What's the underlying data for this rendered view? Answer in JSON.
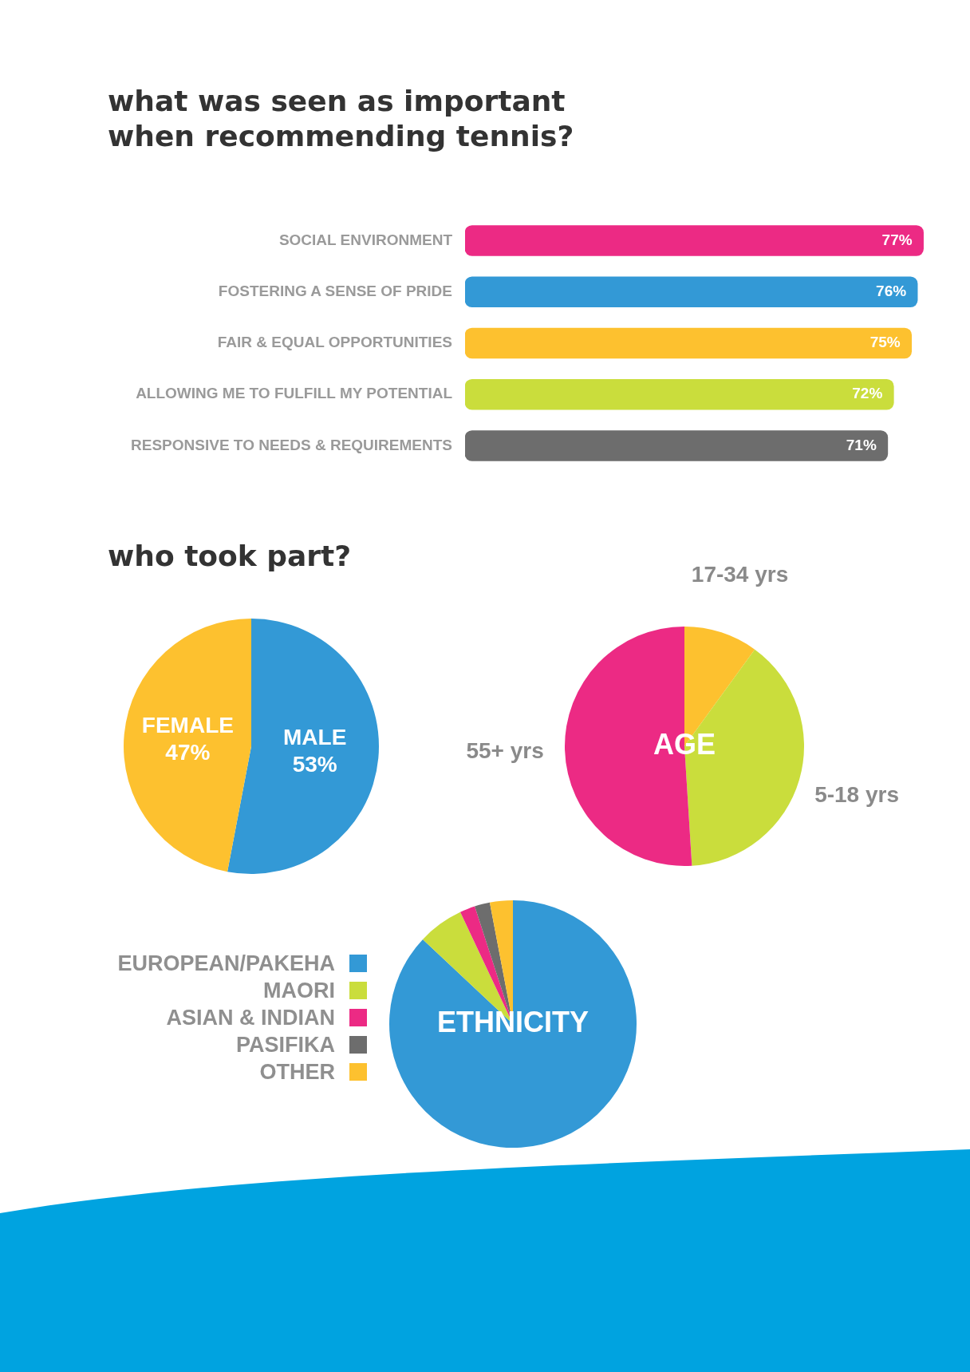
{
  "chart_data": [
    {
      "type": "bar",
      "orientation": "horizontal",
      "title": "what was seen as important\nwhen recommending tennis?",
      "categories": [
        "SOCIAL ENVIRONMENT",
        "FOSTERING A SENSE OF PRIDE",
        "FAIR & EQUAL OPPORTUNITIES",
        "ALLOWING ME TO FULFILL MY POTENTIAL",
        "RESPONSIVE TO NEEDS & REQUIREMENTS"
      ],
      "values": [
        77,
        76,
        75,
        72,
        71
      ],
      "value_labels": [
        "77%",
        "76%",
        "75%",
        "72%",
        "71%"
      ],
      "colors": [
        "#ec2a84",
        "#3399d6",
        "#fdc12f",
        "#cadd3c",
        "#6d6d6d"
      ],
      "tick_labels": "y"
    },
    {
      "type": "pie",
      "title": "who took part?",
      "categories": [
        "MALE",
        "FEMALE"
      ],
      "values": [
        53,
        47
      ],
      "value_labels": [
        "53%",
        "47%"
      ],
      "colors": [
        "#3399d6",
        "#fdc12f"
      ]
    },
    {
      "type": "pie",
      "annotations": [
        "AGE"
      ],
      "categories": [
        "17-34 yrs",
        "5-18 yrs",
        "55+ yrs"
      ],
      "values": [
        10,
        39,
        51
      ],
      "colors": [
        "#fdc12f",
        "#cadd3c",
        "#ec2a84"
      ]
    },
    {
      "type": "pie",
      "annotations": [
        "ETHNICITY"
      ],
      "categories": [
        "EUROPEAN/PAKEHA",
        "MAORI",
        "ASIAN & INDIAN",
        "PASIFIKA",
        "OTHER"
      ],
      "values": [
        87,
        6,
        2,
        2,
        3
      ],
      "colors": [
        "#3399d6",
        "#cadd3c",
        "#ec2a84",
        "#6d6d6d",
        "#fdc12f"
      ],
      "legend": "left"
    }
  ]
}
